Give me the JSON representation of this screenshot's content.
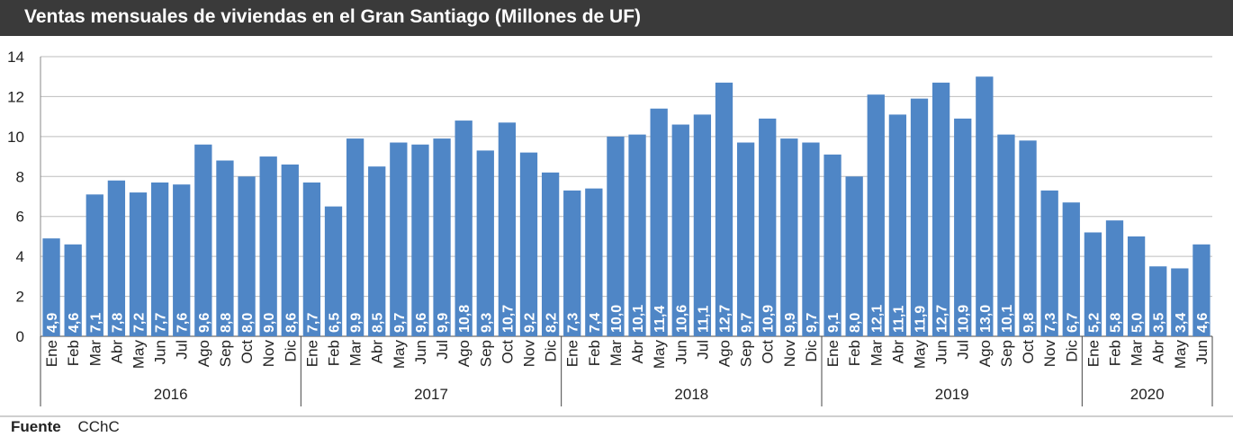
{
  "title": "Ventas mensuales de viviendas en el Gran Santiago (Millones de UF)",
  "footer": {
    "label": "Fuente",
    "value": "CChC"
  },
  "colors": {
    "bar": "#4f86c6",
    "bar_label": "#ffffff",
    "grid": "#bdbdbd",
    "title_bg": "#3a3a3a"
  },
  "chart_data": {
    "type": "bar",
    "ylim": [
      0,
      14
    ],
    "yticks": [
      0,
      2,
      4,
      6,
      8,
      10,
      12,
      14
    ],
    "grid": true,
    "groups": [
      {
        "year": "2016",
        "months": [
          "Ene",
          "Feb",
          "Mar",
          "Abr",
          "May",
          "Jun",
          "Jul",
          "Ago",
          "Sep",
          "Oct",
          "Nov",
          "Dic"
        ],
        "values": [
          4.9,
          4.6,
          7.1,
          7.8,
          7.2,
          7.7,
          7.6,
          9.6,
          8.8,
          8.0,
          9.0,
          8.6
        ]
      },
      {
        "year": "2017",
        "months": [
          "Ene",
          "Feb",
          "Mar",
          "Abr",
          "May",
          "Jun",
          "Jul",
          "Ago",
          "Sep",
          "Oct",
          "Nov",
          "Dic"
        ],
        "values": [
          7.7,
          6.5,
          9.9,
          8.5,
          9.7,
          9.6,
          9.9,
          10.8,
          9.3,
          10.7,
          9.2,
          8.2
        ]
      },
      {
        "year": "2018",
        "months": [
          "Ene",
          "Feb",
          "Mar",
          "Abr",
          "May",
          "Jun",
          "Jul",
          "Ago",
          "Sep",
          "Oct",
          "Nov",
          "Dic"
        ],
        "values": [
          7.3,
          7.4,
          10.0,
          10.1,
          11.4,
          10.6,
          11.1,
          12.7,
          9.7,
          10.9,
          9.9,
          9.7
        ]
      },
      {
        "year": "2019",
        "months": [
          "Ene",
          "Feb",
          "Mar",
          "Abr",
          "May",
          "Jun",
          "Jul",
          "Ago",
          "Sep",
          "Oct",
          "Nov",
          "Dic"
        ],
        "values": [
          9.1,
          8.0,
          12.1,
          11.1,
          11.9,
          12.7,
          10.9,
          13.0,
          10.1,
          9.8,
          7.3,
          6.7
        ]
      },
      {
        "year": "2020",
        "months": [
          "Ene",
          "Feb",
          "Mar",
          "Abr",
          "May",
          "Jun"
        ],
        "values": [
          5.2,
          5.8,
          5.0,
          3.5,
          3.4,
          4.6
        ]
      }
    ]
  }
}
